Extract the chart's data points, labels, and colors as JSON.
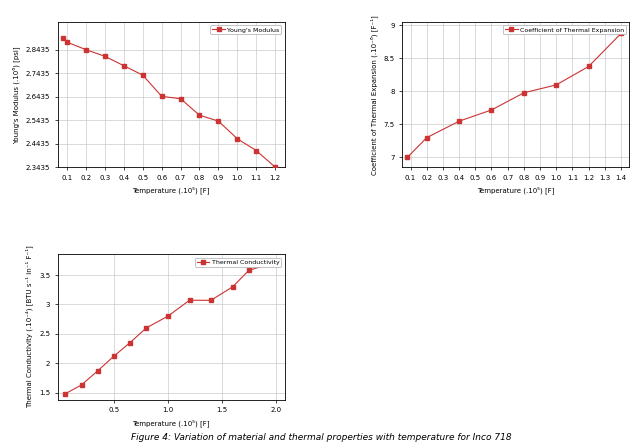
{
  "ym_temp": [
    0.08,
    0.1,
    0.2,
    0.3,
    0.4,
    0.5,
    0.6,
    0.7,
    0.8,
    0.9,
    1.0,
    1.1,
    1.2
  ],
  "ym_vals": [
    2.895,
    2.875,
    2.843,
    2.815,
    2.775,
    2.735,
    2.645,
    2.635,
    2.565,
    2.54,
    2.465,
    2.415,
    2.345
  ],
  "ym_xlabel": "Temperature (.10⁵) [F]",
  "ym_ylabel": "Young's Modulus (.10⁶) [psi]",
  "ym_legend": "Young's Modulus",
  "ym_xlim": [
    0.05,
    1.25
  ],
  "ym_ylim": [
    2.3435,
    2.96
  ],
  "ym_xticks": [
    0.1,
    0.2,
    0.3,
    0.4,
    0.5,
    0.6,
    0.7,
    0.8,
    0.9,
    1.0,
    1.1,
    1.2
  ],
  "ym_yticks": [
    2.3435,
    2.4435,
    2.5435,
    2.6435,
    2.7435,
    2.8435
  ],
  "ym_yticklabels": [
    "2.3435",
    "2.4435",
    "2.5435",
    "2.6435",
    "2.7435",
    "2.8435"
  ],
  "cte_temp": [
    0.08,
    0.2,
    0.4,
    0.6,
    0.8,
    1.0,
    1.2,
    1.4
  ],
  "cte_vals": [
    7.0,
    7.3,
    7.55,
    7.72,
    7.98,
    8.1,
    8.38,
    8.88
  ],
  "cte_xlabel": "Temperature (.10⁵) [F]",
  "cte_ylabel": "Coefficient of Thermal Expansion (.10⁻⁶) [F⁻¹]",
  "cte_legend": "Coefficient of Thermal Expansion",
  "cte_xlim": [
    0.05,
    1.45
  ],
  "cte_ylim": [
    6.85,
    9.05
  ],
  "cte_xticks": [
    0.1,
    0.2,
    0.3,
    0.4,
    0.5,
    0.6,
    0.7,
    0.8,
    0.9,
    1.0,
    1.1,
    1.2,
    1.3,
    1.4
  ],
  "cte_yticks": [
    7.0,
    7.5,
    8.0,
    8.5,
    9.0
  ],
  "cte_yticklabels": [
    "7",
    "7.5",
    "8",
    "8.5",
    "9"
  ],
  "tc_temp": [
    0.05,
    0.2,
    0.35,
    0.5,
    0.65,
    0.8,
    1.0,
    1.2,
    1.4,
    1.6,
    1.75,
    2.0
  ],
  "tc_vals": [
    1.48,
    1.63,
    1.87,
    2.12,
    2.35,
    2.6,
    2.8,
    3.07,
    3.07,
    3.3,
    3.58,
    3.72
  ],
  "tc_xlabel": "Temperature (.10⁵) [F]",
  "tc_ylabel": "Thermal Conductivity (.10⁻⁴) [BTU s⁻¹ in⁻¹ F⁻¹]",
  "tc_legend": "Thermal Conductivity",
  "tc_xlim": [
    -0.02,
    2.08
  ],
  "tc_ylim": [
    1.38,
    3.85
  ],
  "tc_xticks": [
    0.5,
    1.0,
    1.5,
    2.0
  ],
  "tc_yticks": [
    1.5,
    2.0,
    2.5,
    3.0,
    3.5
  ],
  "tc_yticklabels": [
    "1.5",
    "2",
    "2.5",
    "3",
    "3.5"
  ],
  "line_color": "#cc3333",
  "marker": "s",
  "markersize": 2.5,
  "linewidth": 0.8,
  "grid_color": "#cccccc",
  "bg_color": "#ffffff",
  "spine_color": "#000000",
  "tick_labelsize": 5,
  "axis_labelsize": 5,
  "legend_fontsize": 4.5,
  "title": "Figure 4: Variation of material and thermal properties with temperature for Inco 718",
  "title_fontsize": 6.5
}
